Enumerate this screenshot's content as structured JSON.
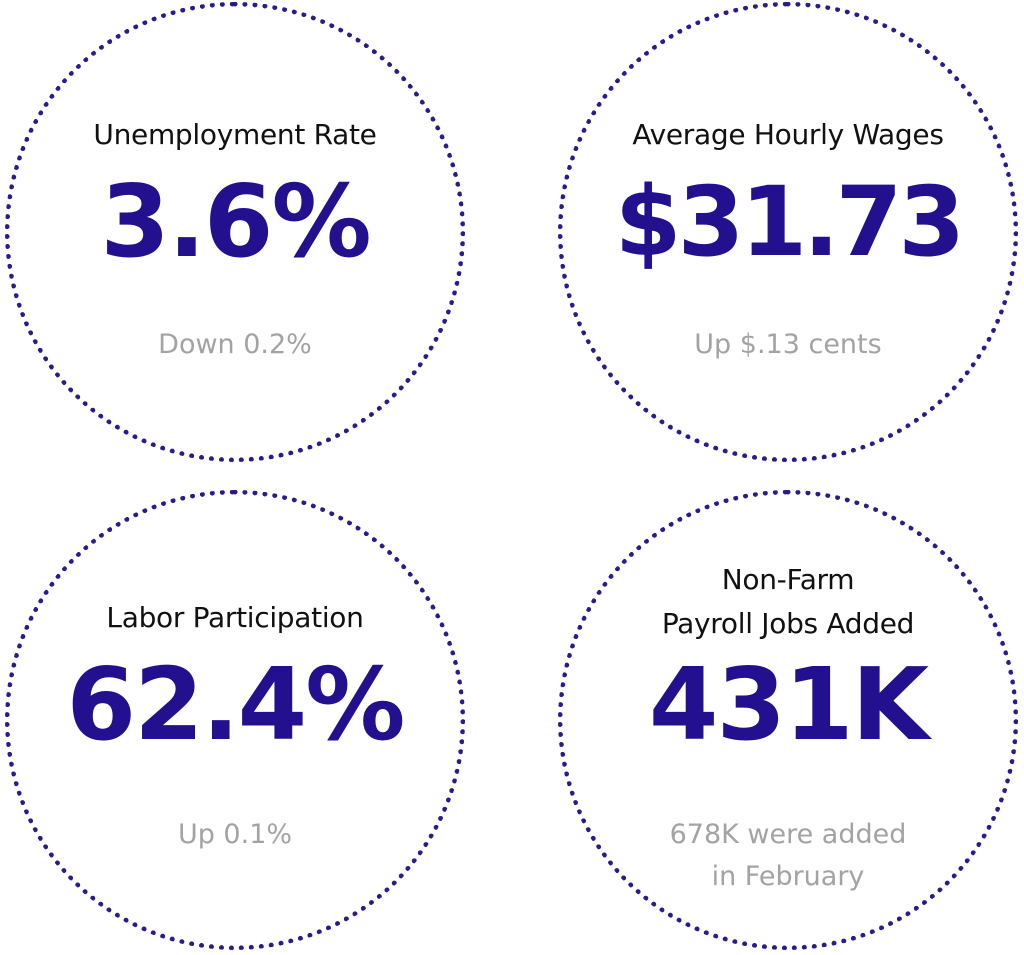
{
  "stats": [
    {
      "label": "Unemployment Rate",
      "value": "3.6%",
      "change": "Down 0.2%"
    },
    {
      "label": "Average Hourly Wages",
      "value": "$31.73",
      "change": "Up $.13 cents"
    },
    {
      "label": "Labor Participation",
      "value": "62.4%",
      "change": "Up 0.1%"
    },
    {
      "label": "Non-Farm\nPayroll Jobs Added",
      "value": "431K",
      "change": "678K were added\nin February"
    }
  ],
  "colors": {
    "accent": "#23108f",
    "dots": "#2a1a8c",
    "label": "#111111",
    "change": "#a3a3a3"
  }
}
